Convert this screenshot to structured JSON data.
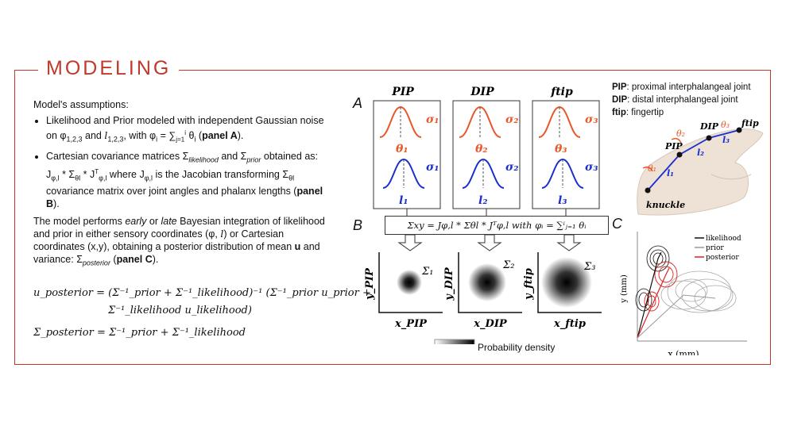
{
  "header": {
    "title": "MODELING"
  },
  "left": {
    "assumptions_heading": "Model's assumptions:",
    "bullet1_a": "Likelihood and Prior modeled with independent Gaussian noise on φ",
    "bullet1_b": "1,2,3",
    "bullet1_c": " and ",
    "bullet1_d": "l",
    "bullet1_e": "1,2,3",
    "bullet1_f": ", with φ",
    "bullet1_g": "i",
    "bullet1_h": " = ∑",
    "bullet1_i": "j=1",
    "bullet1_j": "i",
    "bullet1_k": " θ",
    "bullet1_l": "i",
    "bullet1_m": " (",
    "bullet1_panel": "panel A",
    "bullet1_end": ").",
    "bullet2_a": "Cartesian covariance matrices Σ",
    "bullet2_b": "likelihood",
    "bullet2_c": " and Σ",
    "bullet2_d": "prior",
    "bullet2_e": " obtained as: J",
    "bullet2_f": "φ,l",
    "bullet2_g": " * Σ",
    "bullet2_h": "θl",
    "bullet2_i": " * J",
    "bullet2_j": "T",
    "bullet2_k": "φ,l",
    "bullet2_l": "   where J",
    "bullet2_m": "φ,l",
    "bullet2_n": " is the Jacobian transforming Σ",
    "bullet2_o": "θl",
    "bullet2_p": " covariance matrix over joint angles and phalanx lengths (",
    "bullet2_panel": "panel B",
    "bullet2_end": ").",
    "para_a": "The model performs ",
    "para_early": "early",
    "para_b": " or ",
    "para_late": "late",
    "para_c": " Bayesian integration of likelihood and prior in either sensory coordinates (φ, ",
    "para_l": "l",
    "para_d": ") or Cartesian coordinates (x,y), obtaining a posterior distribution of mean ",
    "para_u": "u",
    "para_e": " and variance: Σ",
    "para_f": "posterior",
    "para_g": " (",
    "para_panel": "panel C",
    "para_end": ").",
    "eq1_line1": "u_posterior = (Σ⁻¹_prior + Σ⁻¹_likelihood)⁻¹ (Σ⁻¹_prior u_prior +",
    "eq1_line2": "Σ⁻¹_likelihood u_likelihood)",
    "eq2": "Σ_posterior = Σ⁻¹_prior + Σ⁻¹_likelihood"
  },
  "panelA": {
    "letter": "A",
    "columns": [
      {
        "title": "PIP",
        "theta": "θ₁",
        "sigma_theta": "σ₁",
        "length": "l₁",
        "sigma_l": "σ₁"
      },
      {
        "title": "DIP",
        "theta": "θ₂",
        "sigma_theta": "σ₂",
        "length": "l₂",
        "sigma_l": "σ₂"
      },
      {
        "title": "ftip",
        "theta": "θ₃",
        "sigma_theta": "σ₃",
        "length": "l₃",
        "sigma_l": "σ₃"
      }
    ],
    "colors": {
      "theta": "#e8582a",
      "length": "#1a2fcf"
    }
  },
  "panelB": {
    "letter": "B",
    "formula": "Σxy = Jφ,l * Σθl * Jᵀφ,l  with  φᵢ = ∑ⁱⱼ₌₁ θᵢ",
    "plots": [
      {
        "sigma": "Σ₁",
        "xlabel": "x_PIP",
        "ylabel": "y_PIP"
      },
      {
        "sigma": "Σ₂",
        "xlabel": "x_DIP",
        "ylabel": "y_DIP"
      },
      {
        "sigma": "Σ₃",
        "xlabel": "x_ftip",
        "ylabel": "y_ftip"
      }
    ],
    "colorbar_label": "Probability density"
  },
  "legend_top": {
    "pip_key": "PIP",
    "pip_text": ": proximal interphalangeal joint",
    "dip_key": "DIP",
    "dip_text": ": distal interphalangeal joint",
    "ftip_key": "ftip",
    "ftip_text": ": fingertip"
  },
  "hand": {
    "labels": [
      "ftip",
      "DIP",
      "PIP",
      "knuckle",
      "θ₃",
      "θ₂",
      "θ₁",
      "l₃",
      "l₂",
      "l₁"
    ]
  },
  "panelC": {
    "letter": "C",
    "ylabel": "y (mm)",
    "xlabel": "x (mm)",
    "legend": [
      {
        "name": "likelihood",
        "color": "#111111"
      },
      {
        "name": "prior",
        "color": "#999999"
      },
      {
        "name": "posterior",
        "color": "#e02020"
      }
    ]
  }
}
